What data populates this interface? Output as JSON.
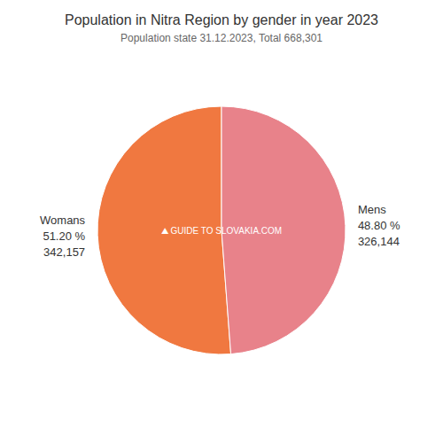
{
  "chart_data": {
    "type": "pie",
    "title": "Population in Nitra Region by gender in year 2023",
    "subtitle": "Population state 31.12.2023, Total 668,301",
    "categories": [
      "Womans",
      "Mens"
    ],
    "values": [
      51.2,
      48.8
    ],
    "value_labels": [
      "51.20 %",
      "48.80 %"
    ],
    "counts": [
      342157,
      326144
    ],
    "count_labels": [
      "342,157",
      "326,144"
    ],
    "colors": [
      "#f07840",
      "#e8828a"
    ],
    "annotations": [
      "⛰  GUIDE TO SLOVAKIA.COM"
    ]
  }
}
